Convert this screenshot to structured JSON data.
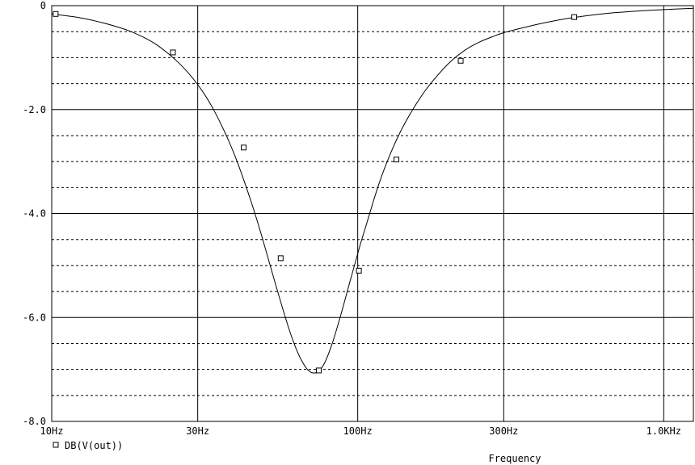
{
  "chart_data": {
    "type": "line",
    "xlabel": "Frequency",
    "ylabel": "",
    "x_scale": "log",
    "xlim": [
      10,
      1250
    ],
    "ylim": [
      -8.0,
      0
    ],
    "grid": true,
    "legend_position": "bottom-left",
    "x_ticks": [
      {
        "value": 10,
        "label": "10Hz"
      },
      {
        "value": 30,
        "label": "30Hz"
      },
      {
        "value": 100,
        "label": "100Hz"
      },
      {
        "value": 300,
        "label": "300Hz"
      },
      {
        "value": 1000,
        "label": "1.0KHz"
      }
    ],
    "y_ticks": [
      {
        "value": 0,
        "label": "0"
      },
      {
        "value": -2,
        "label": "-2.0"
      },
      {
        "value": -4,
        "label": "-4.0"
      },
      {
        "value": -6,
        "label": "-6.0"
      },
      {
        "value": -8,
        "label": "-8.0"
      }
    ],
    "series": [
      {
        "name": "DB(V(out))",
        "marker": "square",
        "color": "#000000",
        "x": [
          10,
          12,
          14,
          16,
          18,
          20,
          22,
          24,
          26,
          28,
          30,
          32,
          34,
          36,
          38,
          40,
          42,
          45,
          48,
          51,
          54,
          57,
          60,
          63,
          66,
          69,
          72,
          75,
          78,
          82,
          86,
          90,
          94,
          98,
          102,
          107,
          112,
          117,
          122,
          130,
          140,
          152,
          165,
          180,
          200,
          225,
          250,
          275,
          300,
          350,
          400,
          470,
          550,
          650,
          750,
          900,
          1050,
          1250
        ],
        "values": [
          -0.16,
          -0.22,
          -0.3,
          -0.39,
          -0.49,
          -0.61,
          -0.75,
          -0.92,
          -1.1,
          -1.3,
          -1.52,
          -1.76,
          -2.03,
          -2.32,
          -2.62,
          -2.94,
          -3.28,
          -3.8,
          -4.33,
          -4.87,
          -5.38,
          -5.85,
          -6.27,
          -6.61,
          -6.86,
          -7.02,
          -7.07,
          -7.02,
          -6.87,
          -6.55,
          -6.16,
          -5.75,
          -5.34,
          -4.96,
          -4.59,
          -4.19,
          -3.8,
          -3.45,
          -3.15,
          -2.75,
          -2.35,
          -1.98,
          -1.66,
          -1.38,
          -1.09,
          -0.85,
          -0.7,
          -0.6,
          -0.52,
          -0.42,
          -0.34,
          -0.26,
          -0.2,
          -0.15,
          -0.12,
          -0.09,
          -0.07,
          -0.05
        ],
        "markers": [
          {
            "x": 10.3,
            "y": -0.16
          },
          {
            "x": 24.9,
            "y": -0.9
          },
          {
            "x": 42.4,
            "y": -2.73
          },
          {
            "x": 56.0,
            "y": -4.86
          },
          {
            "x": 74.6,
            "y": -7.02
          },
          {
            "x": 100.9,
            "y": -5.1
          },
          {
            "x": 133.8,
            "y": -2.96
          },
          {
            "x": 217.0,
            "y": -1.06
          },
          {
            "x": 510.0,
            "y": -0.22
          }
        ]
      }
    ]
  }
}
